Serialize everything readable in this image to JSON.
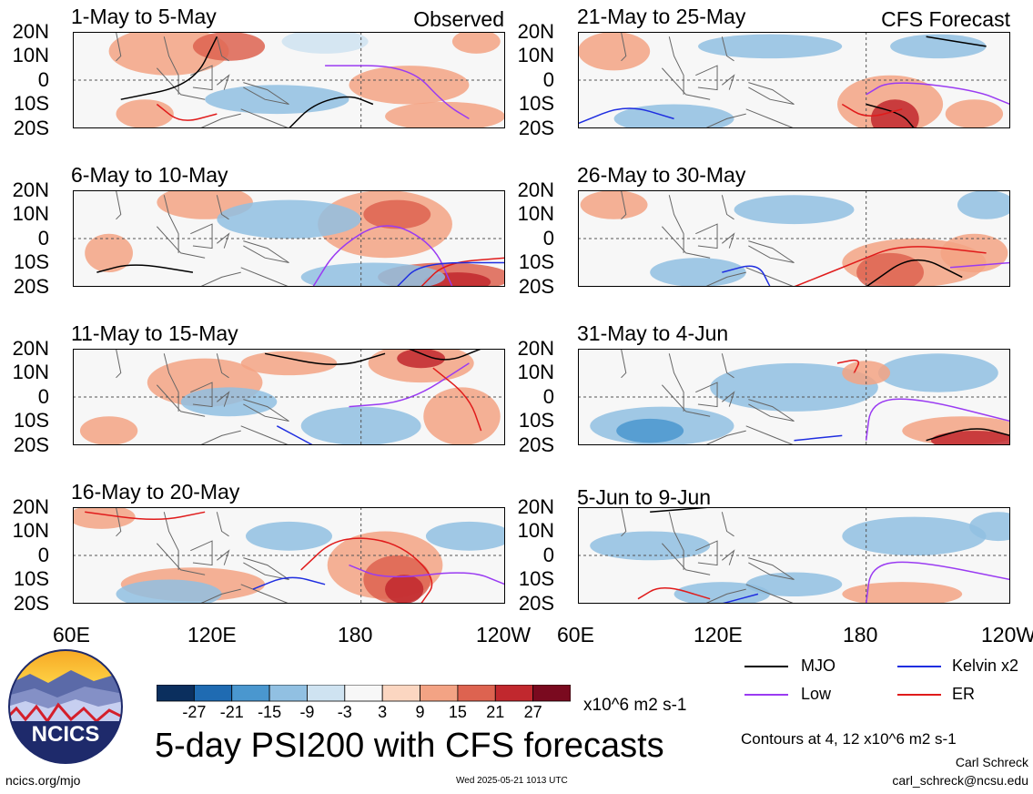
{
  "header": {
    "observed_label": "Observed",
    "forecast_label": "CFS Forecast"
  },
  "lat_labels": [
    "20N",
    "10N",
    "0",
    "10S",
    "20S"
  ],
  "lon_labels": [
    "60E",
    "120E",
    "180",
    "120W"
  ],
  "chart_data": {
    "type": "heatmap",
    "title": "5-day PSI200 with CFS forecasts",
    "units": "x10^6 m2 s-1",
    "lat_range": [
      -20,
      20
    ],
    "lon_range": [
      60,
      240
    ],
    "grid_lines": [
      "equator",
      "180"
    ],
    "panels": [
      {
        "period": "1-May to 5-May",
        "group": "observed"
      },
      {
        "period": "6-May to 10-May",
        "group": "observed"
      },
      {
        "period": "11-May to 15-May",
        "group": "observed"
      },
      {
        "period": "16-May to 20-May",
        "group": "observed"
      },
      {
        "period": "21-May to 25-May",
        "group": "forecast"
      },
      {
        "period": "26-May to 30-May",
        "group": "forecast"
      },
      {
        "period": "31-May to 4-Jun",
        "group": "forecast"
      },
      {
        "period": "5-Jun to 9-Jun",
        "group": "forecast"
      }
    ],
    "colorbar": {
      "ticks": [
        "-27",
        "-21",
        "-15",
        "-9",
        "-3",
        "3",
        "9",
        "15",
        "21",
        "27"
      ],
      "colors": [
        "#0b2f5e",
        "#1f6bb2",
        "#4a97cf",
        "#91c0e2",
        "#cfe3f1",
        "#f7f7f7",
        "#fbd6c1",
        "#f3a384",
        "#dd6350",
        "#c1282e",
        "#7a0a1f"
      ]
    },
    "legend": [
      {
        "label": "MJO",
        "color": "#000000"
      },
      {
        "label": "Kelvin x2",
        "color": "#1f2ee0"
      },
      {
        "label": "Low",
        "color": "#9a3bf2"
      },
      {
        "label": "ER",
        "color": "#e01b1b"
      }
    ],
    "contour_note": "Contours at 4, 12 x10^6 m2 s-1"
  },
  "footer": {
    "logo_text": "NCICS",
    "site": "ncics.org/mjo",
    "timestamp": "Wed 2025-05-21 1013 UTC",
    "author": "Carl Schreck",
    "email": "carl_schreck@ncsu.edu"
  }
}
